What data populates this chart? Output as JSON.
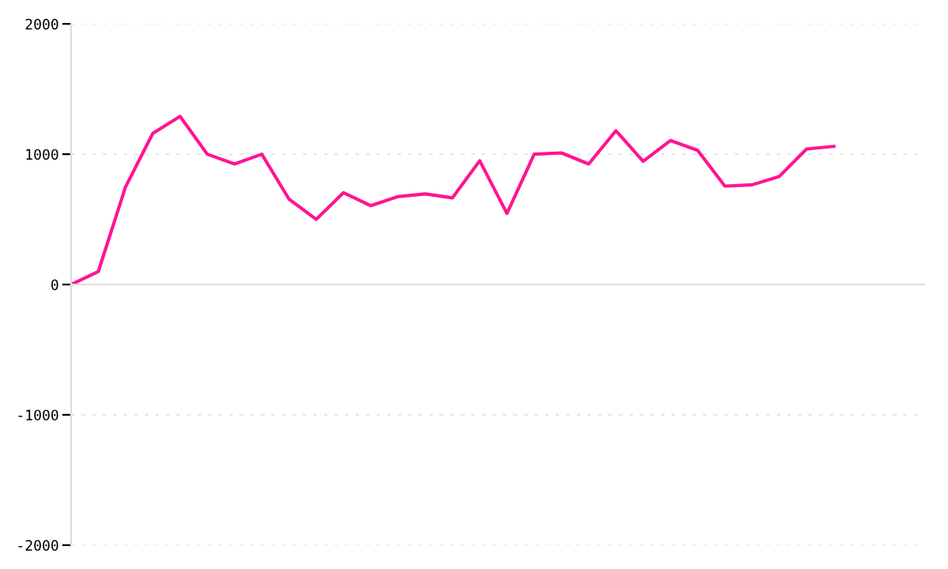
{
  "chart_data": {
    "type": "line",
    "categories": [
      null,
      null,
      null,
      null,
      null,
      null,
      null,
      null,
      null,
      null,
      null,
      null,
      null,
      null,
      null,
      null,
      null,
      null,
      null,
      null,
      null,
      null,
      null,
      null,
      null,
      null,
      null,
      null,
      null
    ],
    "series": [
      {
        "color": "#ff1493",
        "values": [
          0,
          100,
          750,
          1160,
          1290,
          1000,
          925,
          1000,
          655,
          500,
          705,
          605,
          675,
          695,
          665,
          950,
          545,
          1000,
          1010,
          925,
          1180,
          945,
          1105,
          1030,
          755,
          765,
          830,
          1040,
          1060
        ]
      }
    ],
    "ylim": [
      -2000,
      2000
    ],
    "yticks": [
      -2000,
      -1000,
      0,
      1000,
      2000
    ],
    "tick_labels": "y",
    "grid": "y",
    "marker": "none",
    "line_style": "solid"
  }
}
